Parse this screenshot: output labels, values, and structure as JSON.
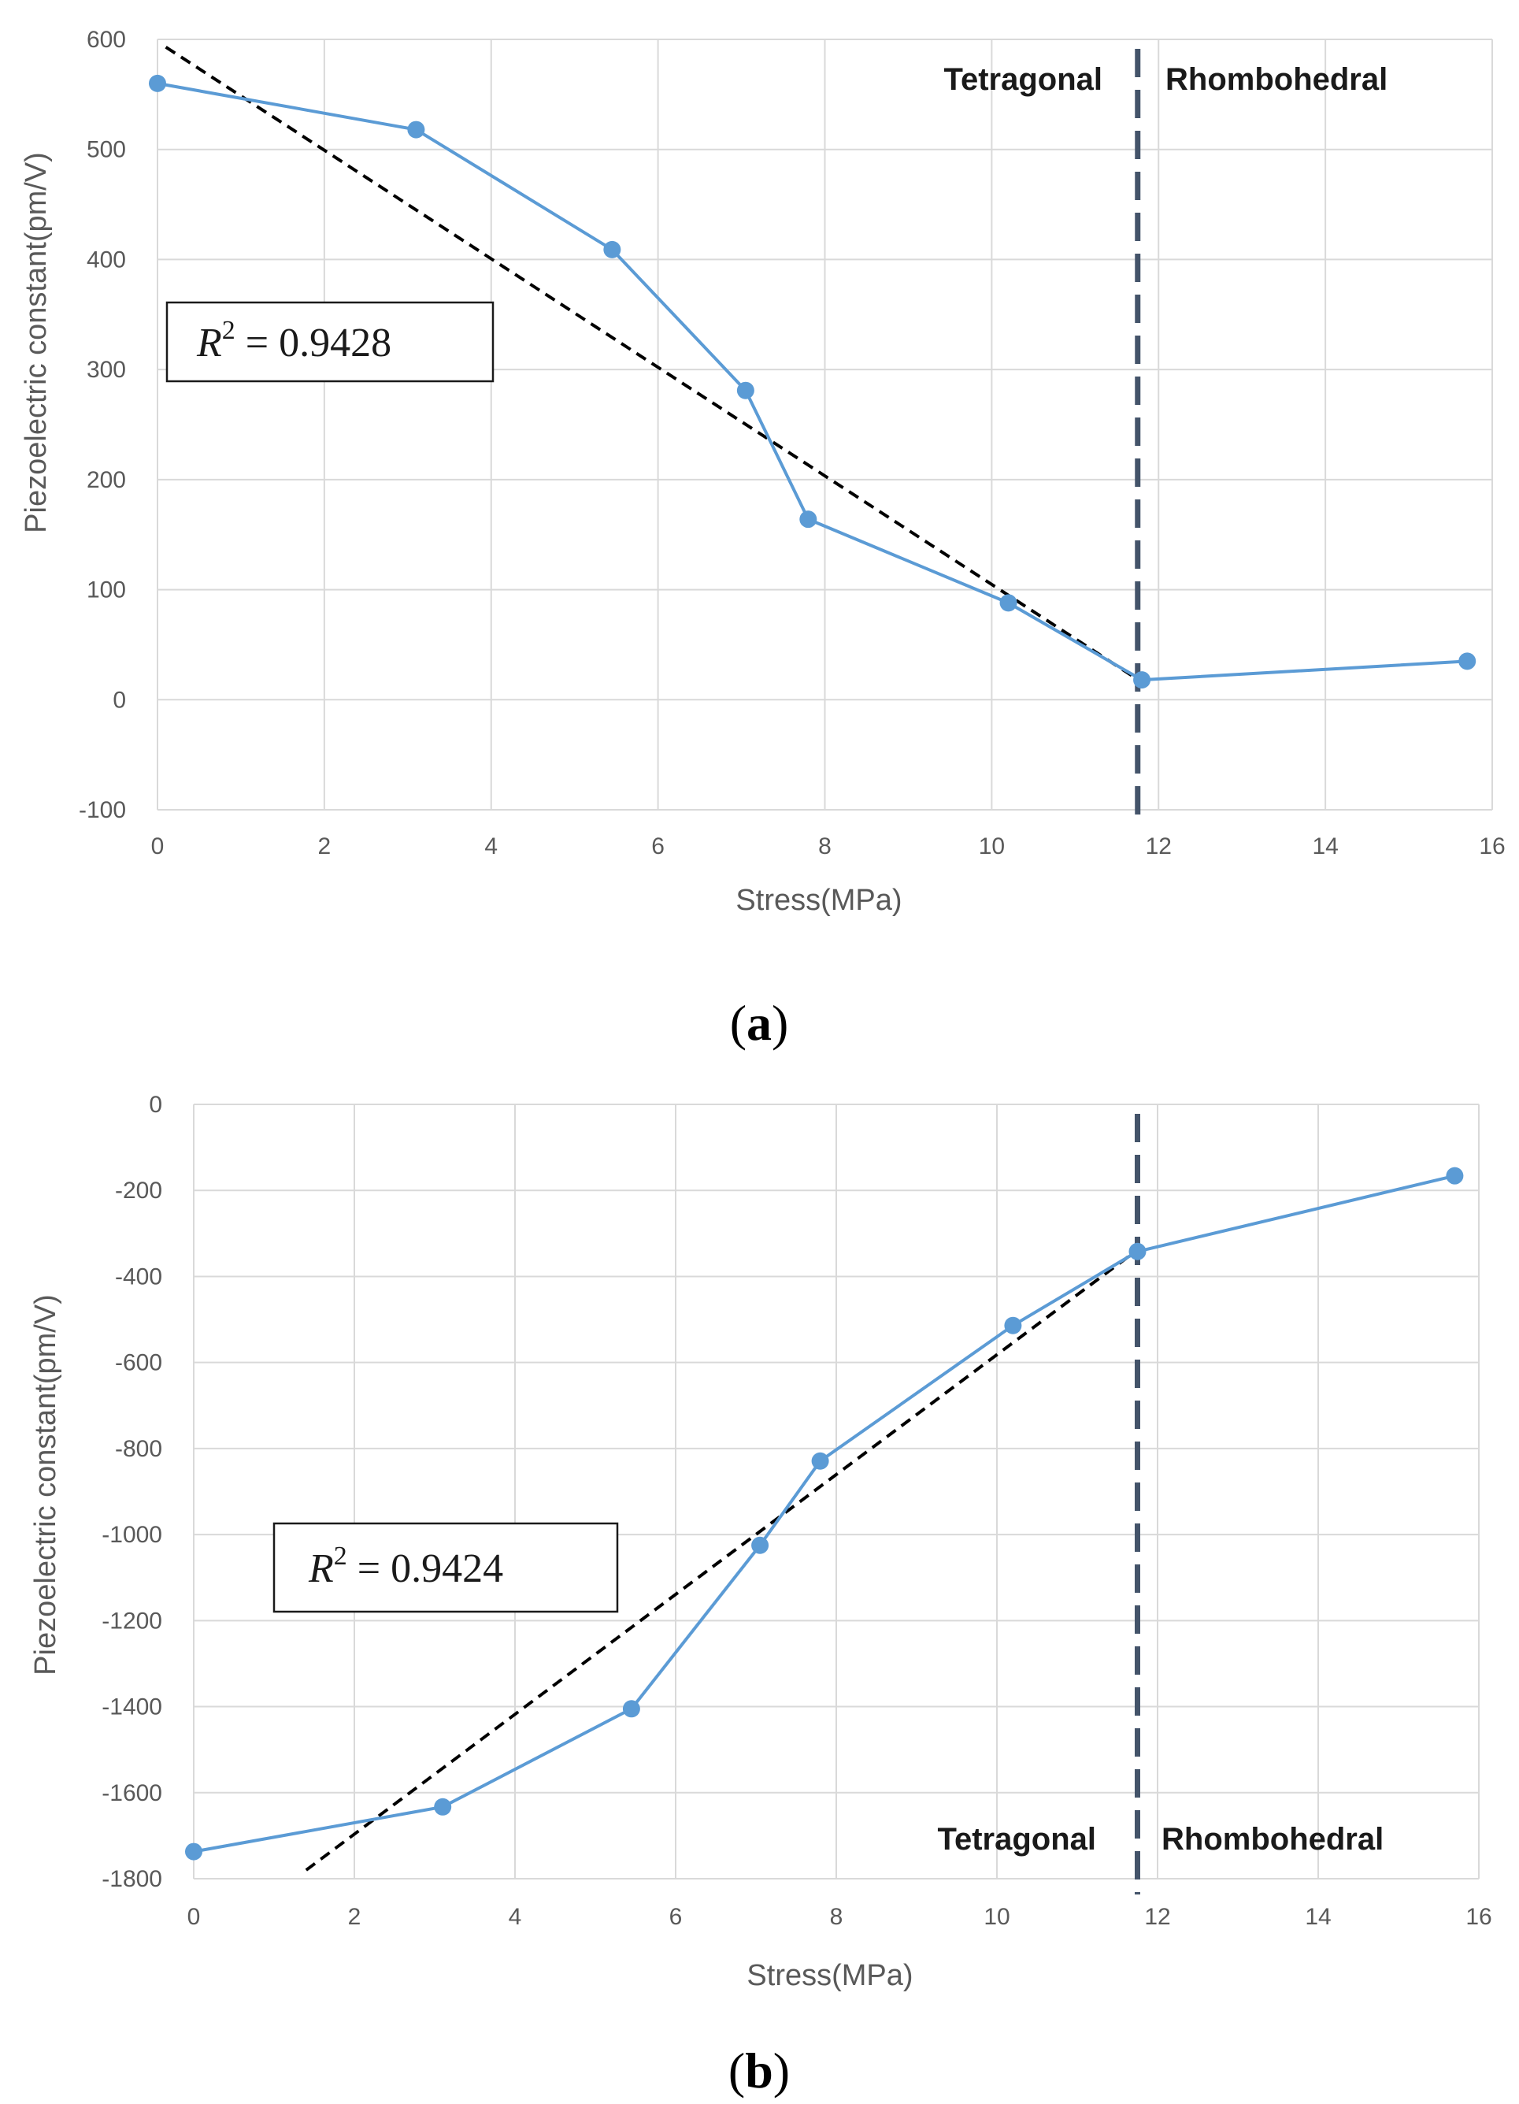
{
  "colors": {
    "series": "#5b9bd5",
    "fit": "#000000",
    "boundary": "#44546a",
    "grid": "#d9d9d9",
    "text": "#595959"
  },
  "chart_data": [
    {
      "type": "line",
      "panel_letter": "a",
      "xlabel": "Stress(MPa)",
      "ylabel": "Piezoelectric constant(pm/V)",
      "xlim": [
        0,
        16
      ],
      "ylim": [
        -100,
        600
      ],
      "xticks": [
        0,
        2,
        4,
        6,
        8,
        10,
        12,
        14,
        16
      ],
      "yticks": [
        -100,
        0,
        100,
        200,
        300,
        400,
        500,
        600
      ],
      "grid": true,
      "series": [
        {
          "name": "Piezoelectric constant",
          "x": [
            0,
            3.1,
            5.45,
            7.05,
            7.8,
            10.2,
            11.8,
            15.7
          ],
          "y": [
            560,
            518,
            409,
            281,
            164,
            88,
            18,
            35
          ]
        }
      ],
      "fit_line": {
        "x": [
          0.1,
          11.8
        ],
        "y": [
          593,
          16
        ]
      },
      "r2_label": {
        "prefix": "R",
        "exponent": "2",
        "rest": " = 0.9428"
      },
      "phase_boundary_x": 11.75,
      "phase_left": "Tetragonal",
      "phase_right": "Rhombohedral"
    },
    {
      "type": "line",
      "panel_letter": "b",
      "xlabel": "Stress(MPa)",
      "ylabel": "Piezoelectric constant(pm/V)",
      "xlim": [
        0,
        16
      ],
      "ylim": [
        -1800,
        0
      ],
      "xticks": [
        0,
        2,
        4,
        6,
        8,
        10,
        12,
        14,
        16
      ],
      "yticks": [
        0,
        -200,
        -400,
        -600,
        -800,
        -1000,
        -1200,
        -1400,
        -1600,
        -1800
      ],
      "grid": true,
      "series": [
        {
          "name": "Piezoelectric constant",
          "x": [
            0,
            3.1,
            5.45,
            7.05,
            7.8,
            10.2,
            11.75,
            15.7
          ],
          "y": [
            -1737,
            -1633,
            -1405,
            -1025,
            -829,
            -514,
            -342,
            -166
          ]
        }
      ],
      "fit_line": {
        "x": [
          1.4,
          11.7
        ],
        "y": [
          -1780,
          -345
        ]
      },
      "r2_label": {
        "prefix": "R",
        "exponent": "2",
        "rest": " = 0.9424"
      },
      "phase_boundary_x": 11.75,
      "phase_left": "Tetragonal",
      "phase_right": "Rhombohedral"
    }
  ]
}
